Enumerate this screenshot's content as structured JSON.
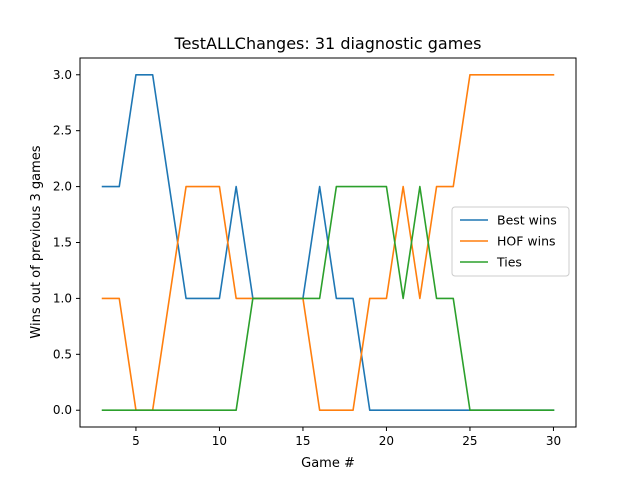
{
  "chart_data": {
    "type": "line",
    "title": "TestALLChanges: 31 diagnostic games",
    "xlabel": "Game #",
    "ylabel": "Wins out of previous 3 games",
    "xlim": [
      1.65,
      31.35
    ],
    "ylim": [
      -0.15,
      3.15
    ],
    "x_ticks": [
      5,
      10,
      15,
      20,
      25,
      30
    ],
    "x_tick_labels": [
      "5",
      "10",
      "15",
      "20",
      "25",
      "30"
    ],
    "y_ticks": [
      0,
      0.5,
      1,
      1.5,
      2,
      2.5,
      3
    ],
    "y_tick_labels": [
      "0.0",
      "0.5",
      "1.0",
      "1.5",
      "2.0",
      "2.5",
      "3.0"
    ],
    "grid": false,
    "legend_position": "center-right",
    "x": [
      3,
      4,
      5,
      6,
      7,
      8,
      9,
      10,
      11,
      12,
      13,
      14,
      15,
      16,
      17,
      18,
      19,
      20,
      21,
      22,
      23,
      24,
      25,
      26,
      27,
      28,
      29,
      30
    ],
    "series": [
      {
        "name": "Best wins",
        "color": "#1f77b4",
        "values": [
          2,
          2,
          3,
          3,
          2,
          1,
          1,
          1,
          2,
          1,
          1,
          1,
          1,
          2,
          1,
          1,
          0,
          0,
          0,
          0,
          0,
          0,
          0,
          0,
          0,
          0,
          0,
          0
        ]
      },
      {
        "name": "HOF wins",
        "color": "#ff7f0e",
        "values": [
          1,
          1,
          0,
          0,
          1,
          2,
          2,
          2,
          1,
          1,
          1,
          1,
          1,
          0,
          0,
          0,
          1,
          1,
          2,
          1,
          2,
          2,
          3,
          3,
          3,
          3,
          3,
          3
        ]
      },
      {
        "name": "Ties",
        "color": "#2ca02c",
        "values": [
          0,
          0,
          0,
          0,
          0,
          0,
          0,
          0,
          0,
          1,
          1,
          1,
          1,
          1,
          2,
          2,
          2,
          2,
          1,
          2,
          1,
          1,
          0,
          0,
          0,
          0,
          0,
          0
        ]
      }
    ]
  }
}
